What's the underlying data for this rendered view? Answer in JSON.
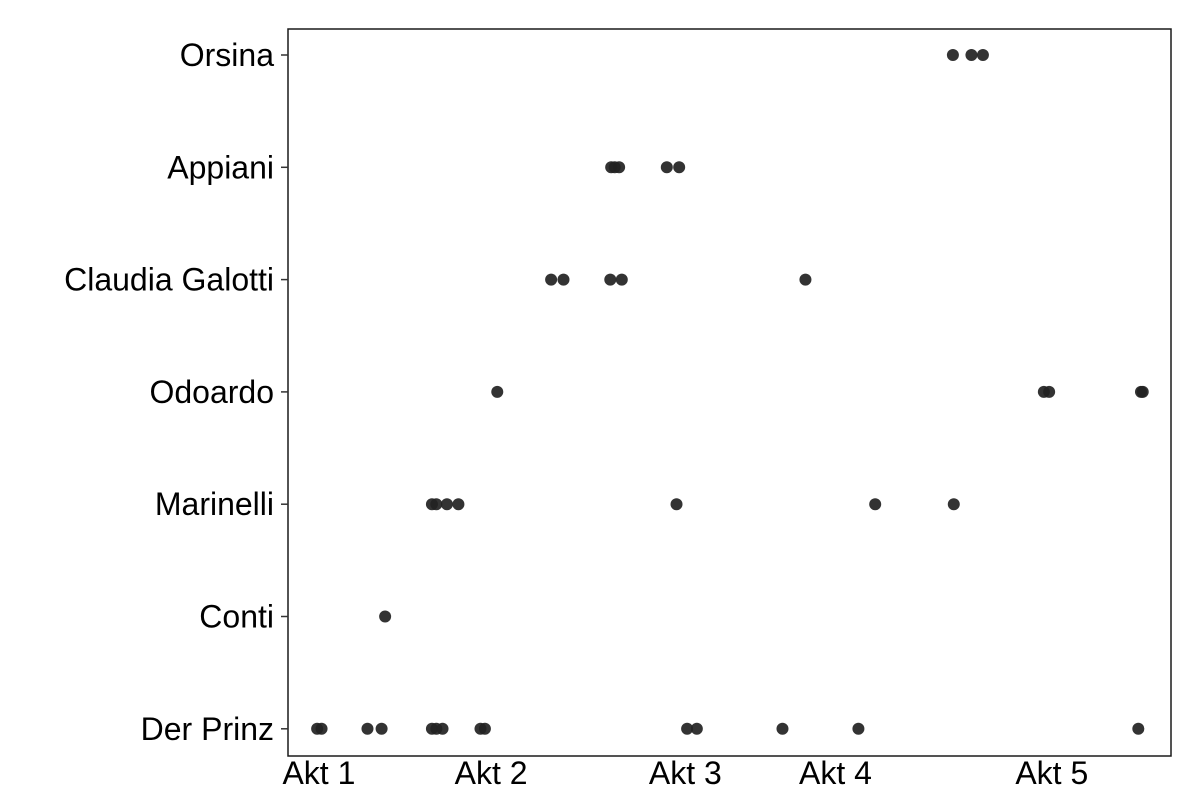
{
  "chart_data": {
    "type": "scatter",
    "title": "",
    "xlabel": "",
    "ylabel": "",
    "grid": false,
    "legend": "none",
    "xlim": [
      0,
      100
    ],
    "x_ticks": [
      {
        "label": "Akt 1",
        "x": 3.5
      },
      {
        "label": "Akt 2",
        "x": 23
      },
      {
        "label": "Akt 3",
        "x": 45
      },
      {
        "label": "Akt 4",
        "x": 62
      },
      {
        "label": "Akt 5",
        "x": 86.5
      }
    ],
    "categories": [
      "Der Prinz",
      "Conti",
      "Marinelli",
      "Odoardo",
      "Claudia Galotti",
      "Appiani",
      "Orsina"
    ],
    "point_color": "#222222",
    "series": [
      {
        "category": "Orsina",
        "x": [
          75.3,
          77.4,
          78.7
        ]
      },
      {
        "category": "Appiani",
        "x": [
          36.6,
          37.0,
          37.5,
          42.9,
          44.3
        ]
      },
      {
        "category": "Claudia Galotti",
        "x": [
          29.8,
          31.2,
          36.5,
          37.8,
          58.6
        ]
      },
      {
        "category": "Odoardo",
        "x": [
          23.7,
          85.6,
          86.2,
          96.6,
          96.8
        ]
      },
      {
        "category": "Marinelli",
        "x": [
          16.3,
          16.8,
          18.0,
          19.3,
          44.0,
          66.5,
          75.4
        ]
      },
      {
        "category": "Conti",
        "x": [
          11.0
        ]
      },
      {
        "category": "Der Prinz",
        "x": [
          3.3,
          3.8,
          9.0,
          10.6,
          16.3,
          16.8,
          17.5,
          21.8,
          22.3,
          45.2,
          46.3,
          56.0,
          64.6,
          96.3
        ]
      }
    ]
  }
}
